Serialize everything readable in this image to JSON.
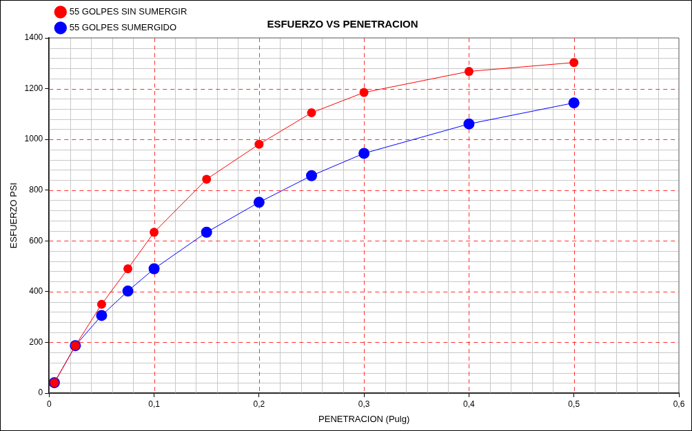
{
  "chart_data": {
    "type": "line",
    "title": "ESFUERZO VS PENETRACION",
    "xlabel": "PENETRACION (Pulg)",
    "ylabel": "ESFUERZO PSI",
    "x": [
      0.005,
      0.025,
      0.05,
      0.075,
      0.1,
      0.15,
      0.2,
      0.25,
      0.3,
      0.4,
      0.5
    ],
    "series": [
      {
        "name": "55 GOLPES SUMERGIDO",
        "color": "#0000ff",
        "values": [
          41,
          187,
          306,
          402,
          490,
          634,
          752,
          857,
          945,
          1061,
          1144
        ]
      },
      {
        "name": "55 GOLPES SIN SUMERGIR",
        "color": "#ff0000",
        "values": [
          41,
          187,
          350,
          490,
          634,
          843,
          981,
          1105,
          1185,
          1268,
          1303
        ]
      }
    ],
    "xlim": [
      0,
      0.6
    ],
    "xticks": [
      0,
      {
        "value": 0.1,
        "label": "0,1"
      },
      {
        "value": 0.2,
        "label": "0,2"
      },
      {
        "value": 0.3,
        "label": "0,3"
      },
      {
        "value": 0.4,
        "label": "0,4"
      },
      {
        "value": 0.5,
        "label": "0,5"
      },
      {
        "value": 0.6,
        "label": "0,6"
      }
    ],
    "ylim": [
      0,
      1400
    ],
    "yticks": [
      0,
      200,
      400,
      600,
      800,
      1000,
      1200,
      1400
    ],
    "grid": true,
    "legend": "top left",
    "marker": "circle",
    "line_style": "solid"
  }
}
